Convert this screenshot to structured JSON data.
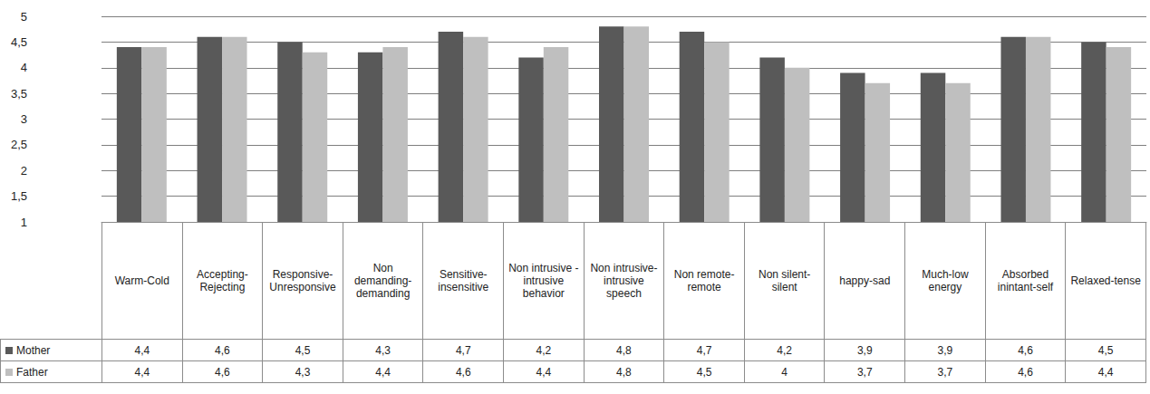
{
  "chart_data": {
    "type": "bar",
    "categories": [
      "Warm-Cold",
      "Accepting-Rejecting",
      "Responsive-Unresponsive",
      "Non demanding-demanding",
      "Sensitive-insensitive",
      "Non intrusive -intrusive behavior",
      "Non intrusive-intrusive speech",
      "Non remote-remote",
      "Non silent-silent",
      "happy-sad",
      "Much-low energy",
      "Absorbed inintant-self",
      "Relaxed-tense"
    ],
    "series": [
      {
        "name": "Mother",
        "color": "#595959",
        "values": [
          4.4,
          4.6,
          4.5,
          4.3,
          4.7,
          4.2,
          4.8,
          4.7,
          4.2,
          3.9,
          3.9,
          4.6,
          4.5
        ],
        "value_labels": [
          "4,4",
          "4,6",
          "4,5",
          "4,3",
          "4,7",
          "4,2",
          "4,8",
          "4,7",
          "4,2",
          "3,9",
          "3,9",
          "4,6",
          "4,5"
        ]
      },
      {
        "name": "Father",
        "color": "#bfbfbf",
        "values": [
          4.4,
          4.6,
          4.3,
          4.4,
          4.6,
          4.4,
          4.8,
          4.5,
          4,
          3.7,
          3.7,
          4.6,
          4.4
        ],
        "value_labels": [
          "4,4",
          "4,6",
          "4,3",
          "4,4",
          "4,6",
          "4,4",
          "4,8",
          "4,5",
          "4",
          "3,7",
          "3,7",
          "4,6",
          "4,4"
        ]
      }
    ],
    "ylim": [
      1,
      5
    ],
    "yticks": [
      1,
      {
        "value": 1.5,
        "label": "1,5"
      },
      2,
      {
        "value": 2.5,
        "label": "2,5"
      },
      3,
      {
        "value": 3.5,
        "label": "3,5"
      },
      4,
      {
        "value": 4.5,
        "label": "4,5"
      },
      5
    ],
    "grid": true
  }
}
